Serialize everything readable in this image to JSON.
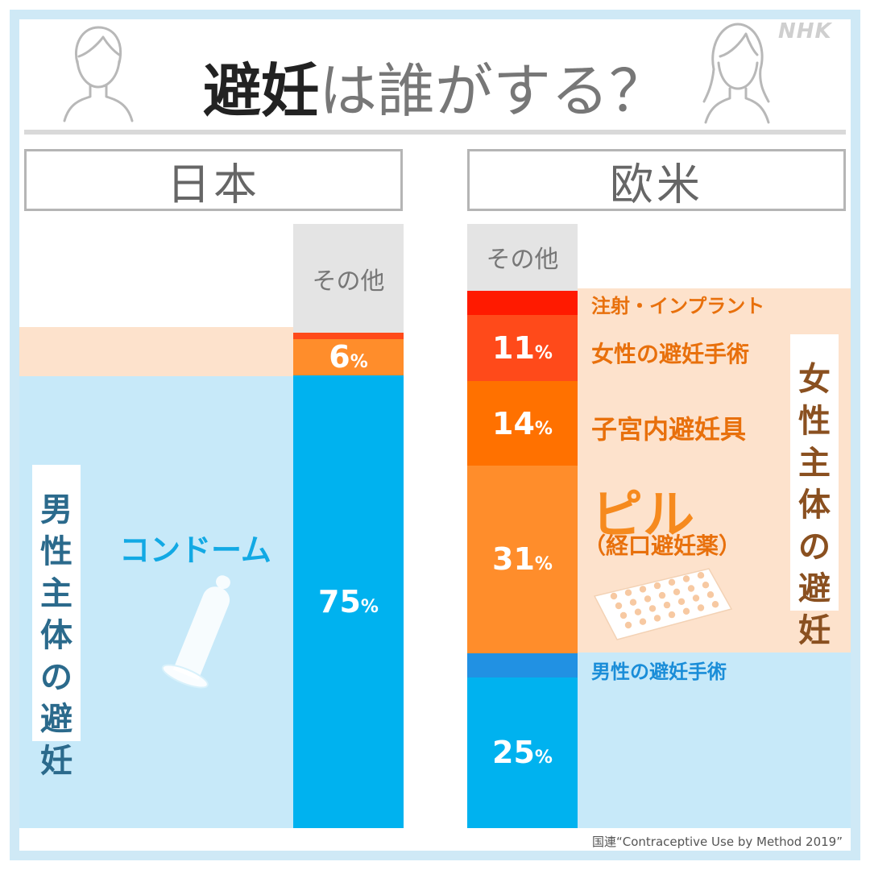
{
  "brand": {
    "logo": "NHK"
  },
  "header": {
    "title_dark": "避妊",
    "title_light": "は誰がする？"
  },
  "japan": {
    "region_label": "日本",
    "side_label": "男性主体の避妊",
    "item_label": "コンドーム"
  },
  "west": {
    "region_label": "欧米",
    "side_label": "女性主体の避妊",
    "pill_title": "ピル",
    "pill_sub": "（経口避妊薬）"
  },
  "colors": {
    "frame": "#cfe9f6",
    "male_zone": "#c7e9f9",
    "female_zone": "#fde2cc",
    "condom": "#00b2ef",
    "male_sterilization": "#2191e3",
    "pill": "#ff8d2b",
    "iud": "#ff7100",
    "female_sterilization": "#ff4a1a",
    "injection": "#ff1a00",
    "other": "#e4e4e4"
  },
  "chart_data": [
    {
      "type": "bar",
      "stacked": true,
      "title": "日本",
      "segments": [
        {
          "name": "コンドーム",
          "value": 75,
          "label": "75",
          "unit": "%",
          "group": "男性主体の避妊"
        },
        {
          "name": "",
          "value": 6,
          "label": "6",
          "unit": "%",
          "group": "女性主体の避妊"
        },
        {
          "name": "",
          "value": 1,
          "label": "",
          "unit": "",
          "group": "女性主体の避妊"
        },
        {
          "name": "その他",
          "value": 18,
          "label": "その他",
          "unit": "",
          "group": "その他"
        }
      ]
    },
    {
      "type": "bar",
      "stacked": true,
      "title": "欧米",
      "segments": [
        {
          "name": "",
          "value": 25,
          "label": "25",
          "unit": "%",
          "group": "男性主体の避妊"
        },
        {
          "name": "男性の避妊手術",
          "value": 4,
          "label": "",
          "unit": "",
          "group": "男性主体の避妊"
        },
        {
          "name": "ピル",
          "value": 31,
          "label": "31",
          "unit": "%",
          "group": "女性主体の避妊"
        },
        {
          "name": "子宮内避妊具",
          "value": 14,
          "label": "14",
          "unit": "%",
          "group": "女性主体の避妊"
        },
        {
          "name": "女性の避妊手術",
          "value": 11,
          "label": "11",
          "unit": "%",
          "group": "女性主体の避妊"
        },
        {
          "name": "注射・インプラント",
          "value": 4,
          "label": "",
          "unit": "",
          "group": "女性主体の避妊"
        },
        {
          "name": "その他",
          "value": 11,
          "label": "その他",
          "unit": "",
          "group": "その他"
        }
      ]
    }
  ],
  "source": "国連“Contraceptive Use by Method 2019”"
}
